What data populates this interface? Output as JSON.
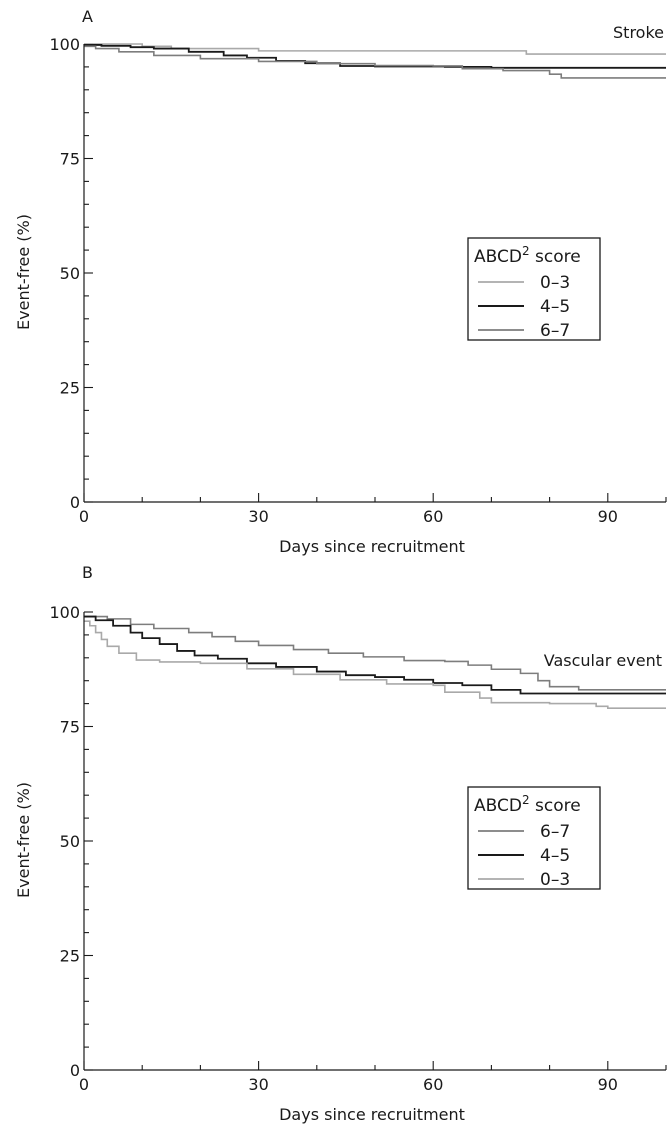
{
  "chart_data": [
    {
      "type": "line",
      "panel_label": "A",
      "annotation": "Stroke",
      "xlabel": "Days since recruitment",
      "ylabel": "Event-free (%)",
      "xlim": [
        0,
        100
      ],
      "ylim": [
        0,
        100
      ],
      "xticks": [
        0,
        30,
        60,
        90
      ],
      "yticks": [
        0,
        25,
        50,
        75,
        100
      ],
      "legend": {
        "title": "ABCD",
        "title_superscript": "2",
        "title_suffix": " score",
        "placement": "center-right"
      },
      "series": [
        {
          "name": "0–3",
          "color": "#a9a9a9",
          "width": 1.6,
          "points": [
            [
              0,
              100
            ],
            [
              10,
              99.5
            ],
            [
              15,
              99
            ],
            [
              30,
              98.5
            ],
            [
              75,
              98.5
            ],
            [
              76,
              97.8
            ],
            [
              100,
              97.8
            ]
          ]
        },
        {
          "name": "4–5",
          "color": "#1a1a1a",
          "width": 1.8,
          "points": [
            [
              0,
              99.8
            ],
            [
              3,
              99.6
            ],
            [
              8,
              99.3
            ],
            [
              12,
              99
            ],
            [
              18,
              98.3
            ],
            [
              24,
              97.5
            ],
            [
              28,
              97
            ],
            [
              33,
              96.3
            ],
            [
              38,
              95.8
            ],
            [
              44,
              95.2
            ],
            [
              50,
              95.1
            ],
            [
              56,
              95.1
            ],
            [
              62,
              95
            ],
            [
              70,
              94.8
            ],
            [
              100,
              94.8
            ]
          ]
        },
        {
          "name": "6–7",
          "color": "#7d7d7d",
          "width": 1.6,
          "points": [
            [
              0,
              99.5
            ],
            [
              2,
              99
            ],
            [
              6,
              98.3
            ],
            [
              12,
              97.5
            ],
            [
              20,
              96.8
            ],
            [
              30,
              96.2
            ],
            [
              40,
              95.7
            ],
            [
              50,
              95.3
            ],
            [
              60,
              95.2
            ],
            [
              65,
              94.6
            ],
            [
              72,
              94.2
            ],
            [
              80,
              93.4
            ],
            [
              82,
              92.6
            ],
            [
              100,
              92.6
            ]
          ]
        }
      ]
    },
    {
      "type": "line",
      "panel_label": "B",
      "annotation": "Vascular event",
      "xlabel": "Days since recruitment",
      "ylabel": "Event-free (%)",
      "xlim": [
        0,
        100
      ],
      "ylim": [
        0,
        100
      ],
      "xticks": [
        0,
        30,
        60,
        90
      ],
      "yticks": [
        0,
        25,
        50,
        75,
        100
      ],
      "legend": {
        "title": "ABCD",
        "title_superscript": "2",
        "title_suffix": " score",
        "placement": "center-right"
      },
      "series": [
        {
          "name": "6–7",
          "color": "#7d7d7d",
          "width": 1.6,
          "points": [
            [
              0,
              99
            ],
            [
              4,
              98.5
            ],
            [
              8,
              97.3
            ],
            [
              12,
              96.4
            ],
            [
              18,
              95.5
            ],
            [
              22,
              94.6
            ],
            [
              26,
              93.6
            ],
            [
              30,
              92.7
            ],
            [
              36,
              91.8
            ],
            [
              42,
              91
            ],
            [
              48,
              90.2
            ],
            [
              55,
              89.4
            ],
            [
              62,
              89.2
            ],
            [
              66,
              88.4
            ],
            [
              70,
              87.5
            ],
            [
              75,
              86.6
            ],
            [
              78,
              85
            ],
            [
              80,
              83.7
            ],
            [
              85,
              83
            ],
            [
              100,
              83
            ]
          ]
        },
        {
          "name": "4–5",
          "color": "#1a1a1a",
          "width": 1.8,
          "points": [
            [
              0,
              99
            ],
            [
              2,
              98.2
            ],
            [
              5,
              97
            ],
            [
              8,
              95.5
            ],
            [
              10,
              94.3
            ],
            [
              13,
              93
            ],
            [
              16,
              91.5
            ],
            [
              19,
              90.5
            ],
            [
              23,
              89.8
            ],
            [
              28,
              88.8
            ],
            [
              33,
              88
            ],
            [
              40,
              87
            ],
            [
              45,
              86.2
            ],
            [
              50,
              85.8
            ],
            [
              55,
              85.2
            ],
            [
              60,
              84.5
            ],
            [
              65,
              84
            ],
            [
              70,
              83
            ],
            [
              75,
              82.2
            ],
            [
              100,
              82.2
            ]
          ]
        },
        {
          "name": "0–3",
          "color": "#a9a9a9",
          "width": 1.6,
          "points": [
            [
              0,
              98
            ],
            [
              1,
              97
            ],
            [
              2,
              95.5
            ],
            [
              3,
              94
            ],
            [
              4,
              92.5
            ],
            [
              6,
              91
            ],
            [
              9,
              89.5
            ],
            [
              13,
              89.1
            ],
            [
              20,
              88.8
            ],
            [
              28,
              87.6
            ],
            [
              36,
              86.4
            ],
            [
              44,
              85.2
            ],
            [
              52,
              84.3
            ],
            [
              60,
              84
            ],
            [
              62,
              82.5
            ],
            [
              68,
              81.2
            ],
            [
              70,
              80.2
            ],
            [
              80,
              80
            ],
            [
              88,
              79.4
            ],
            [
              90,
              79
            ],
            [
              100,
              79
            ]
          ]
        }
      ]
    }
  ]
}
